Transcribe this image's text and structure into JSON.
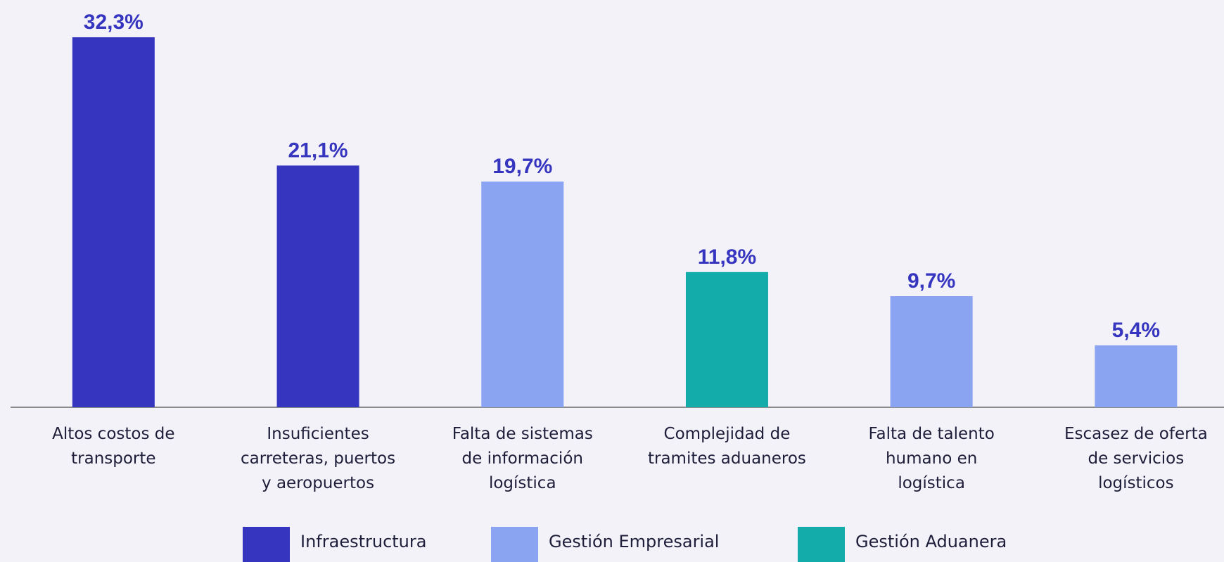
{
  "chart_data": {
    "type": "bar",
    "categories": [
      [
        "Altos costos de",
        "transporte"
      ],
      [
        "Insuficientes",
        "carreteras, puertos",
        "y aeropuertos"
      ],
      [
        "Falta de sistemas",
        "de información",
        "logística"
      ],
      [
        "Complejidad de",
        "tramites aduaneros"
      ],
      [
        "Falta de talento",
        "humano en",
        "logística"
      ],
      [
        "Escasez de oferta",
        "de servicios",
        "logísticos"
      ]
    ],
    "series": [
      {
        "name": "Infraestructura",
        "color": "#3535bf",
        "values": [
          32.3,
          21.1,
          null,
          null,
          null,
          null
        ],
        "value_labels": [
          "32,3%",
          "21,1%",
          null,
          null,
          null,
          null
        ]
      },
      {
        "name": "Gestión Empresarial",
        "color": "#8aa4f2",
        "values": [
          null,
          null,
          19.7,
          null,
          9.7,
          5.4
        ],
        "value_labels": [
          null,
          null,
          "19,7%",
          null,
          "9,7%",
          "5,4%"
        ]
      },
      {
        "name": "Gestión Aduanera",
        "color": "#14abab",
        "values": [
          null,
          null,
          null,
          11.8,
          null,
          null
        ],
        "value_labels": [
          null,
          null,
          null,
          "11,8%",
          null,
          null
        ]
      }
    ],
    "ylim": [
      0,
      35
    ]
  }
}
